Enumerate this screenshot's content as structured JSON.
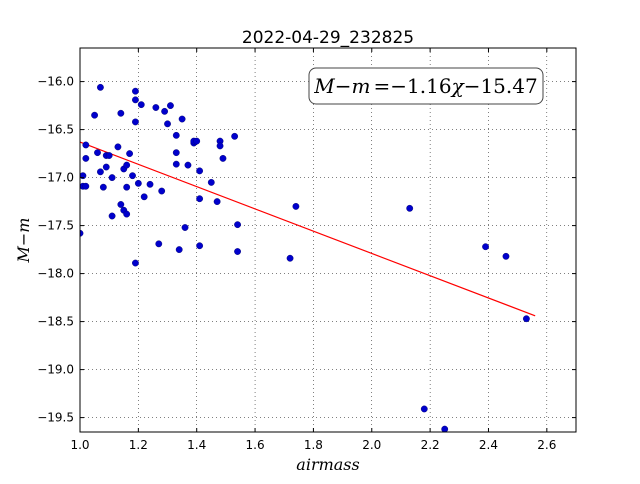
{
  "chart_data": {
    "type": "scatter",
    "title": "2022-04-29_232825",
    "xlabel": "airmass",
    "ylabel": "M−m",
    "xlim": [
      1.0,
      2.7
    ],
    "ylim": [
      -19.65,
      -15.65
    ],
    "xticks": [
      1.0,
      1.2,
      1.4,
      1.6,
      1.8,
      2.0,
      2.2,
      2.4,
      2.6
    ],
    "xtick_labels": [
      "1.0",
      "1.2",
      "1.4",
      "1.6",
      "1.8",
      "2.0",
      "2.2",
      "2.4",
      "2.6"
    ],
    "yticks": [
      -16.0,
      -16.5,
      -17.0,
      -17.5,
      -18.0,
      -18.5,
      -19.0,
      -19.5
    ],
    "ytick_labels": [
      "−16.0",
      "−16.5",
      "−17.0",
      "−17.5",
      "−18.0",
      "−18.5",
      "−19.0",
      "−19.5"
    ],
    "grid": true,
    "annotation": {
      "lhs": "M",
      "minus": "−",
      "m": "m",
      "equals": "=",
      "slope": "−1.16",
      "chi": "χ",
      "intercept": "−15.47",
      "placement": "top-right"
    },
    "series": [
      {
        "marker_color": "#0000cc",
        "points": [
          [
            1.0,
            -17.58
          ],
          [
            1.01,
            -16.98
          ],
          [
            1.01,
            -17.09
          ],
          [
            1.02,
            -16.66
          ],
          [
            1.02,
            -16.8
          ],
          [
            1.02,
            -17.09
          ],
          [
            1.05,
            -16.35
          ],
          [
            1.06,
            -16.74
          ],
          [
            1.07,
            -16.06
          ],
          [
            1.07,
            -16.94
          ],
          [
            1.08,
            -17.1
          ],
          [
            1.09,
            -16.89
          ],
          [
            1.09,
            -16.77
          ],
          [
            1.1,
            -16.77
          ],
          [
            1.11,
            -17.4
          ],
          [
            1.11,
            -17.0
          ],
          [
            1.13,
            -16.68
          ],
          [
            1.14,
            -16.33
          ],
          [
            1.14,
            -17.28
          ],
          [
            1.15,
            -17.34
          ],
          [
            1.15,
            -16.91
          ],
          [
            1.16,
            -16.87
          ],
          [
            1.16,
            -17.1
          ],
          [
            1.16,
            -17.38
          ],
          [
            1.17,
            -16.75
          ],
          [
            1.18,
            -16.98
          ],
          [
            1.19,
            -16.1
          ],
          [
            1.19,
            -16.19
          ],
          [
            1.19,
            -16.42
          ],
          [
            1.19,
            -17.89
          ],
          [
            1.2,
            -17.06
          ],
          [
            1.21,
            -16.24
          ],
          [
            1.22,
            -17.2
          ],
          [
            1.24,
            -17.07
          ],
          [
            1.26,
            -16.27
          ],
          [
            1.27,
            -17.69
          ],
          [
            1.28,
            -17.14
          ],
          [
            1.29,
            -16.31
          ],
          [
            1.3,
            -16.44
          ],
          [
            1.31,
            -16.25
          ],
          [
            1.33,
            -16.56
          ],
          [
            1.33,
            -16.74
          ],
          [
            1.33,
            -16.86
          ],
          [
            1.34,
            -17.75
          ],
          [
            1.35,
            -16.39
          ],
          [
            1.36,
            -17.52
          ],
          [
            1.37,
            -16.87
          ],
          [
            1.39,
            -16.64
          ],
          [
            1.39,
            -16.62
          ],
          [
            1.4,
            -16.62
          ],
          [
            1.41,
            -16.93
          ],
          [
            1.41,
            -17.22
          ],
          [
            1.41,
            -17.71
          ],
          [
            1.45,
            -17.05
          ],
          [
            1.47,
            -17.25
          ],
          [
            1.48,
            -16.62
          ],
          [
            1.48,
            -16.67
          ],
          [
            1.49,
            -16.8
          ],
          [
            1.53,
            -16.57
          ],
          [
            1.54,
            -17.49
          ],
          [
            1.54,
            -17.77
          ],
          [
            1.72,
            -17.84
          ],
          [
            1.74,
            -17.3
          ],
          [
            2.13,
            -17.32
          ],
          [
            2.18,
            -19.41
          ],
          [
            2.25,
            -19.62
          ],
          [
            2.39,
            -17.72
          ],
          [
            2.46,
            -17.82
          ],
          [
            2.53,
            -18.47
          ]
        ]
      }
    ],
    "fit_line": {
      "color": "#ff0000",
      "slope": -1.16,
      "intercept": -15.47,
      "x_range": [
        1.0,
        2.56
      ]
    }
  }
}
